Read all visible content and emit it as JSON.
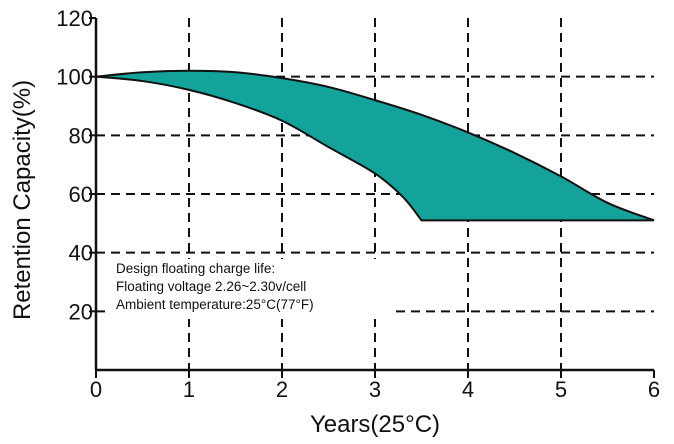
{
  "chart_data": {
    "type": "area",
    "xlabel": "Years(25°C)",
    "ylabel": "Retention Capacity(%)",
    "xlim": [
      0,
      6
    ],
    "ylim": [
      0,
      120
    ],
    "x_ticks": [
      "0",
      "1",
      "2",
      "3",
      "4",
      "5",
      "6"
    ],
    "y_ticks": [
      "20",
      "40",
      "60",
      "80",
      "100",
      "120"
    ],
    "grid": true,
    "annotation": [
      "Design floating charge life:",
      "Floating voltage 2.26~2.30v/cell",
      "Ambient temperature:25°C(77°F)"
    ],
    "fill_color": "#14a39a",
    "series": [
      {
        "x": [
          0,
          0.5,
          1,
          1.5,
          2,
          2.5,
          3,
          3.5,
          4,
          4.5,
          5,
          5.5,
          6
        ],
        "values": [
          100,
          101.5,
          102,
          101.5,
          99.5,
          96.5,
          92,
          87,
          81,
          74,
          66,
          57,
          51
        ]
      },
      {
        "x": [
          0,
          0.5,
          1,
          1.5,
          2,
          2.5,
          3,
          3.3,
          3.5,
          6
        ],
        "values": [
          100,
          98.5,
          95.5,
          91,
          85,
          76,
          67,
          59,
          51,
          51
        ]
      }
    ]
  }
}
